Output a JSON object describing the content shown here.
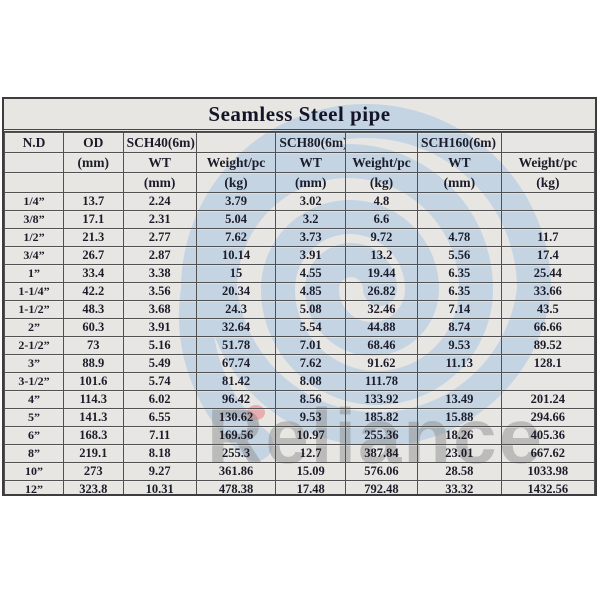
{
  "title": "Seamless Steel pipe",
  "watermark": {
    "logo_icon": "swirl-logo",
    "text": "Reliance",
    "logo_color": "#b7cde3",
    "text_color": "#8c8c8c",
    "highlight_dot_color": "#e8747c"
  },
  "colors": {
    "sheet_bg": "#e7e6e3",
    "border": "#515151",
    "text": "#1c1c2a"
  },
  "table": {
    "header_rows": [
      [
        "N.D",
        "OD",
        "SCH40(6m)",
        "",
        "SCH80(6m)",
        "",
        "SCH160(6m)",
        ""
      ],
      [
        "",
        "(mm)",
        "WT",
        "Weight/pc",
        "WT",
        "Weight/pc",
        "WT",
        "Weight/pc"
      ],
      [
        "",
        "",
        "(mm)",
        "(kg)",
        "(mm)",
        "(kg)",
        "(mm)",
        "(kg)"
      ]
    ],
    "rows": [
      [
        "1/4”",
        "13.7",
        "2.24",
        "3.79",
        "3.02",
        "4.8",
        "",
        ""
      ],
      [
        "3/8”",
        "17.1",
        "2.31",
        "5.04",
        "3.2",
        "6.6",
        "",
        ""
      ],
      [
        "1/2”",
        "21.3",
        "2.77",
        "7.62",
        "3.73",
        "9.72",
        "4.78",
        "11.7"
      ],
      [
        "3/4”",
        "26.7",
        "2.87",
        "10.14",
        "3.91",
        "13.2",
        "5.56",
        "17.4"
      ],
      [
        "1”",
        "33.4",
        "3.38",
        "15",
        "4.55",
        "19.44",
        "6.35",
        "25.44"
      ],
      [
        "1-1/4”",
        "42.2",
        "3.56",
        "20.34",
        "4.85",
        "26.82",
        "6.35",
        "33.66"
      ],
      [
        "1-1/2”",
        "48.3",
        "3.68",
        "24.3",
        "5.08",
        "32.46",
        "7.14",
        "43.5"
      ],
      [
        "2”",
        "60.3",
        "3.91",
        "32.64",
        "5.54",
        "44.88",
        "8.74",
        "66.66"
      ],
      [
        "2-1/2”",
        "73",
        "5.16",
        "51.78",
        "7.01",
        "68.46",
        "9.53",
        "89.52"
      ],
      [
        "3”",
        "88.9",
        "5.49",
        "67.74",
        "7.62",
        "91.62",
        "11.13",
        "128.1"
      ],
      [
        "3-1/2”",
        "101.6",
        "5.74",
        "81.42",
        "8.08",
        "111.78",
        "",
        ""
      ],
      [
        "4”",
        "114.3",
        "6.02",
        "96.42",
        "8.56",
        "133.92",
        "13.49",
        "201.24"
      ],
      [
        "5”",
        "141.3",
        "6.55",
        "130.62",
        "9.53",
        "185.82",
        "15.88",
        "294.66"
      ],
      [
        "6”",
        "168.3",
        "7.11",
        "169.56",
        "10.97",
        "255.36",
        "18.26",
        "405.36"
      ],
      [
        "8”",
        "219.1",
        "8.18",
        "255.3",
        "12.7",
        "387.84",
        "23.01",
        "667.62"
      ],
      [
        "10”",
        "273",
        "9.27",
        "361.86",
        "15.09",
        "576.06",
        "28.58",
        "1033.98"
      ],
      [
        "12”",
        "323.8",
        "10.31",
        "478.38",
        "17.48",
        "792.48",
        "33.32",
        "1432.56"
      ]
    ]
  }
}
